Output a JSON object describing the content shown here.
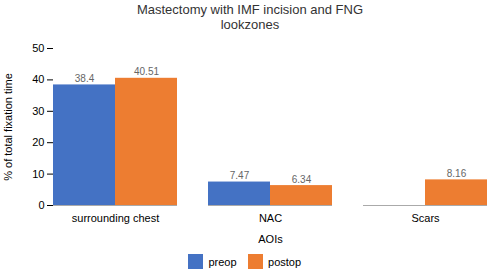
{
  "chart_data": {
    "type": "bar",
    "title": "Mastectomy with IMF incision and FNG\nlookzones",
    "categories": [
      "surrounding chest",
      "NAC",
      "Scars"
    ],
    "series": [
      {
        "name": "preop",
        "color": "#4472C4",
        "values": [
          38.4,
          7.47,
          0
        ]
      },
      {
        "name": "postop",
        "color": "#ED7D31",
        "values": [
          40.51,
          6.34,
          8.16
        ]
      }
    ],
    "xlabel": "AOIs",
    "ylabel": "% of total fixation time",
    "ylim": [
      0,
      50
    ],
    "yticks": [
      0,
      10,
      20,
      30,
      40,
      50
    ],
    "grid": false,
    "legend": "bottom",
    "data_labels": true
  }
}
